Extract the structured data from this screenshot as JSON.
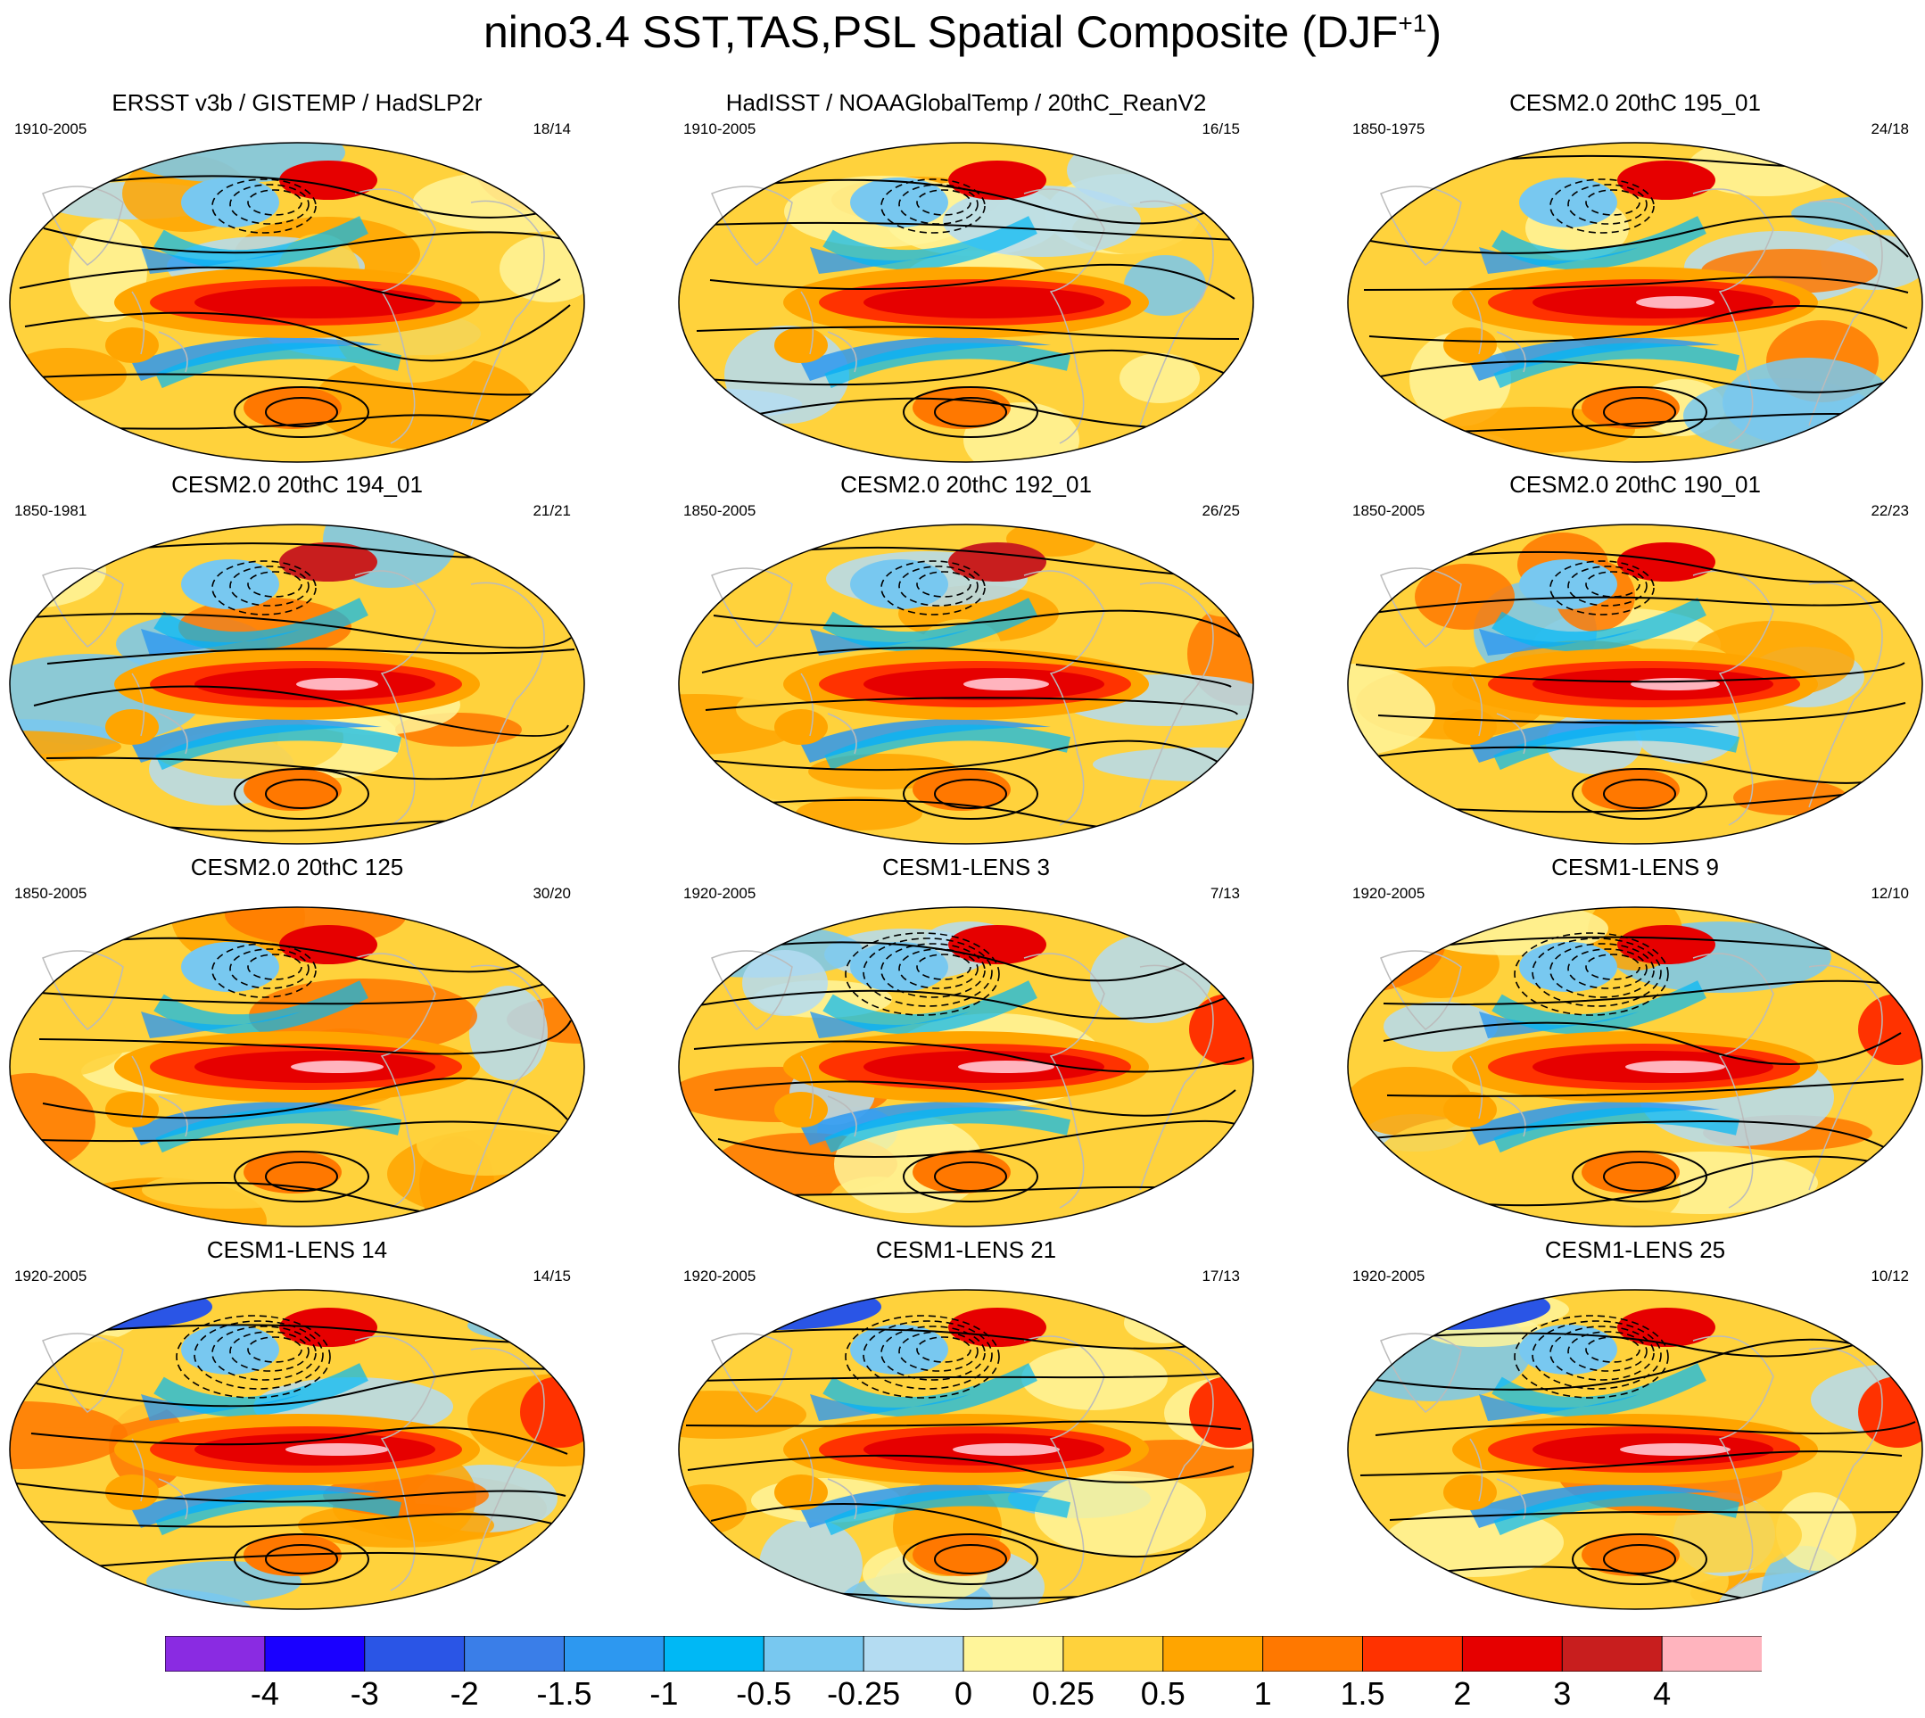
{
  "title": {
    "text": "nino3.4 SST,TAS,PSL Spatial Composite (DJF",
    "superscript": "+1",
    "close": ")"
  },
  "panels": [
    {
      "title": "ERSST v3b / GISTEMP / HadSLP2r",
      "years": "1910-2005",
      "count": "18/14"
    },
    {
      "title": "HadISST / NOAAGlobalTemp / 20thC_ReanV2",
      "years": "1910-2005",
      "count": "16/15"
    },
    {
      "title": "CESM2.0 20thC 195_01",
      "years": "1850-1975",
      "count": "24/18"
    },
    {
      "title": "CESM2.0 20thC 194_01",
      "years": "1850-1981",
      "count": "21/21"
    },
    {
      "title": "CESM2.0 20thC 192_01",
      "years": "1850-2005",
      "count": "26/25"
    },
    {
      "title": "CESM2.0 20thC 190_01",
      "years": "1850-2005",
      "count": "22/23"
    },
    {
      "title": "CESM2.0 20thC 125",
      "years": "1850-2005",
      "count": "30/20"
    },
    {
      "title": "CESM1-LENS 3",
      "years": "1920-2005",
      "count": "7/13"
    },
    {
      "title": "CESM1-LENS 9",
      "years": "1920-2005",
      "count": "12/10"
    },
    {
      "title": "CESM1-LENS 14",
      "years": "1920-2005",
      "count": "14/15"
    },
    {
      "title": "CESM1-LENS 21",
      "years": "1920-2005",
      "count": "17/13"
    },
    {
      "title": "CESM1-LENS 25",
      "years": "1920-2005",
      "count": "10/12"
    }
  ],
  "colorbar": {
    "colors": [
      "#8a2be2",
      "#1a00ff",
      "#2a55e6",
      "#3a7ee8",
      "#2d98f0",
      "#00b8f5",
      "#78c8f0",
      "#b4dcf2",
      "#fff59a",
      "#ffd23c",
      "#ffa500",
      "#ff7800",
      "#ff3200",
      "#e60000",
      "#c81e1e",
      "#ffb4be"
    ],
    "labels": [
      "-4",
      "-3",
      "-2",
      "-1.5",
      "-1",
      "-0.5",
      "-0.25",
      "0",
      "0.25",
      "0.5",
      "1",
      "1.5",
      "2",
      "3",
      "4"
    ]
  }
}
